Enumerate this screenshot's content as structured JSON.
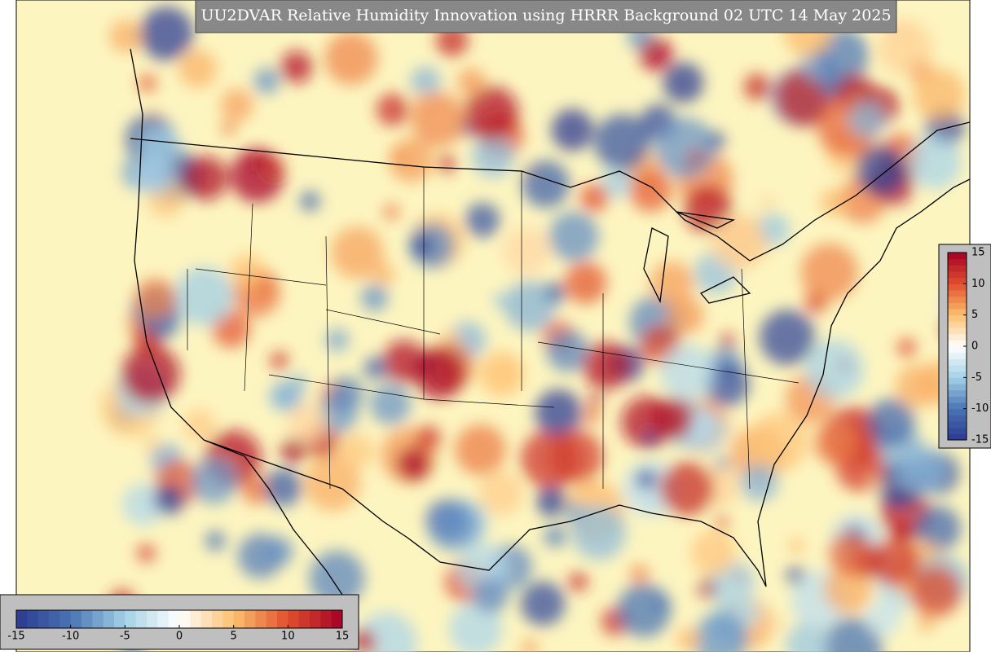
{
  "title": "UU2DVAR Relative Humidity Innovation using HRRR Background 02 UTC 14 May 2025",
  "colorbar": {
    "range": [
      -15,
      15
    ],
    "ticks": [
      -15,
      -10,
      -5,
      0,
      5,
      10,
      15
    ],
    "colors": [
      "#2b3990",
      "#4a74b4",
      "#a3d0e6",
      "#ffffff",
      "#fdc070",
      "#e04f2e",
      "#a50026"
    ]
  }
}
